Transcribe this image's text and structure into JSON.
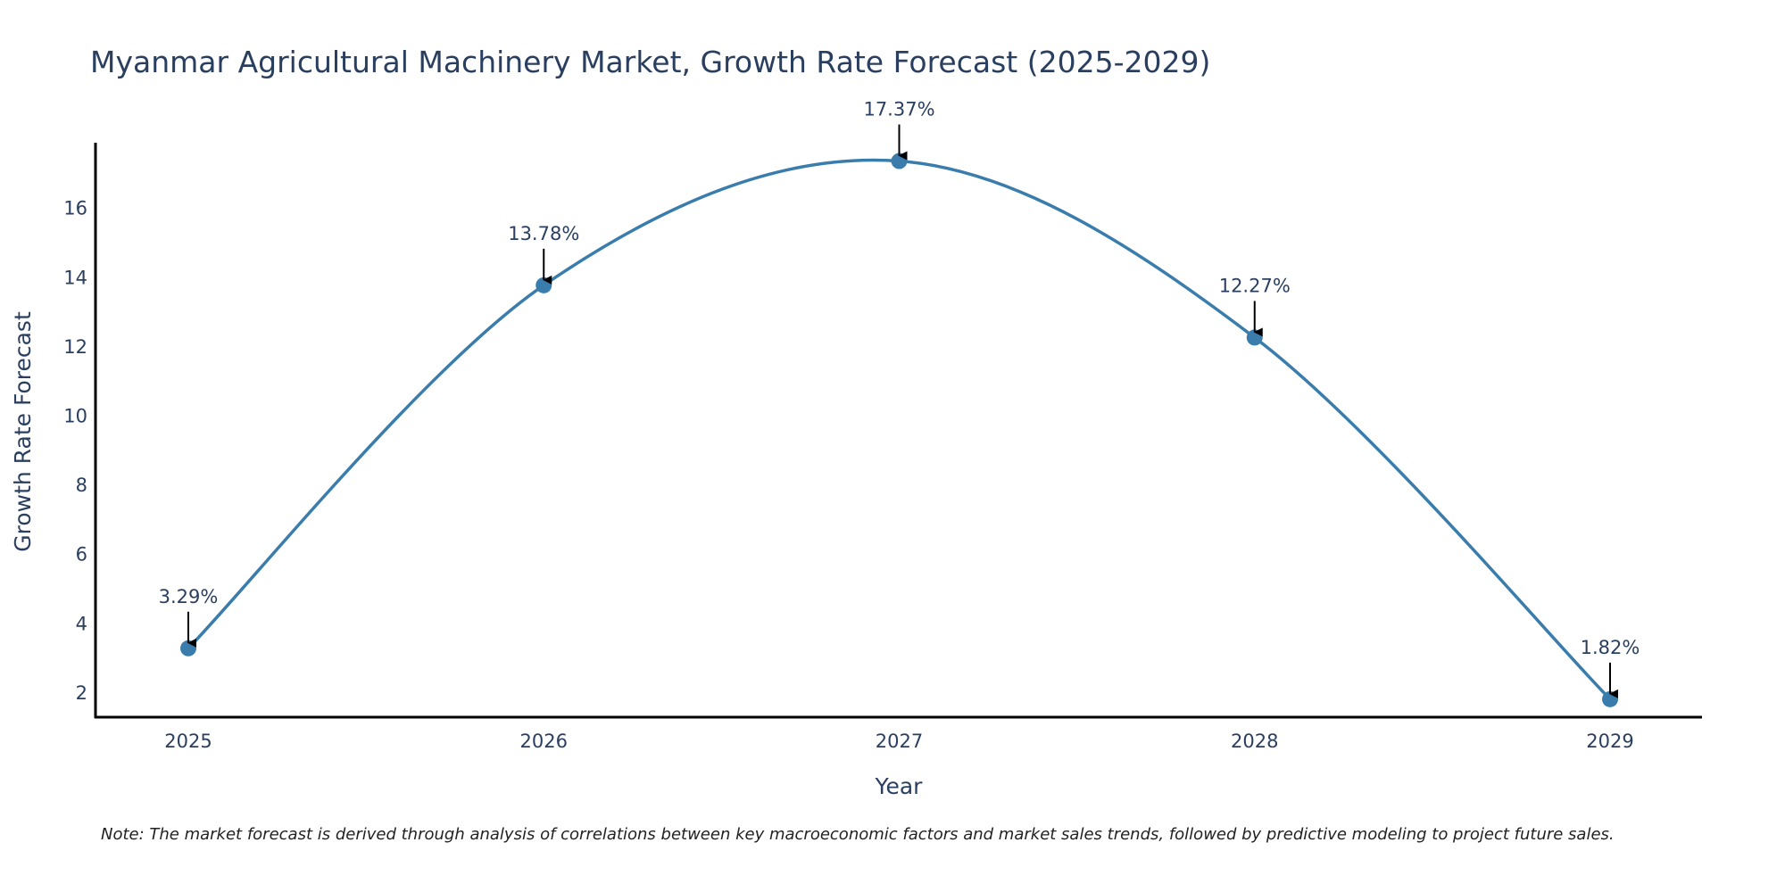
{
  "chart_data": {
    "type": "line",
    "title": "Myanmar Agricultural Machinery Market, Growth Rate Forecast (2025-2029)",
    "xlabel": "Year",
    "ylabel": "Growth Rate Forecast",
    "categories": [
      "2025",
      "2026",
      "2027",
      "2028",
      "2029"
    ],
    "series": [
      {
        "name": "Growth Rate Forecast",
        "values": [
          3.29,
          13.78,
          17.37,
          12.27,
          1.82
        ],
        "labels": [
          "3.29%",
          "13.78%",
          "17.37%",
          "12.27%",
          "1.82%"
        ]
      }
    ],
    "yticks": [
      "2",
      "4",
      "6",
      "8",
      "10",
      "12",
      "14",
      "16"
    ],
    "ytick_values": [
      2,
      4,
      6,
      8,
      10,
      12,
      14,
      16
    ],
    "ylim": [
      1.3,
      17.9
    ],
    "grid": false,
    "line_color": "#3a7dad",
    "marker_color": "#3a7dad",
    "note": "Note: The market forecast is derived through analysis of correlations between key macroeconomic factors and market sales trends, followed by predictive modeling to project future sales."
  }
}
